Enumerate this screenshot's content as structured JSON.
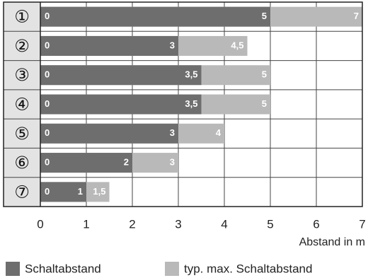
{
  "chart_data": {
    "type": "bar",
    "orientation": "horizontal",
    "overlap": true,
    "categories": [
      "①",
      "②",
      "③",
      "④",
      "⑤",
      "⑥",
      "⑦"
    ],
    "series": [
      {
        "name": "Schaltabstand",
        "color": "#6e6e6e",
        "values": [
          5,
          3,
          3.5,
          3.5,
          3,
          2,
          1
        ],
        "value_labels": [
          "5",
          "3",
          "3,5",
          "3,5",
          "3",
          "2",
          "1"
        ]
      },
      {
        "name": "typ. max. Schaltabstand",
        "color": "#b9b9b9",
        "values": [
          7,
          4.5,
          5,
          5,
          4,
          3,
          1.5
        ],
        "value_labels": [
          "7",
          "4,5",
          "5",
          "5",
          "4",
          "3",
          "1,5"
        ]
      }
    ],
    "bar_start": 0,
    "xlim": [
      0,
      7
    ],
    "xticks": [
      0,
      1,
      2,
      3,
      4,
      5,
      6,
      7
    ],
    "xlabel": "Abstand in m",
    "grid": true
  }
}
